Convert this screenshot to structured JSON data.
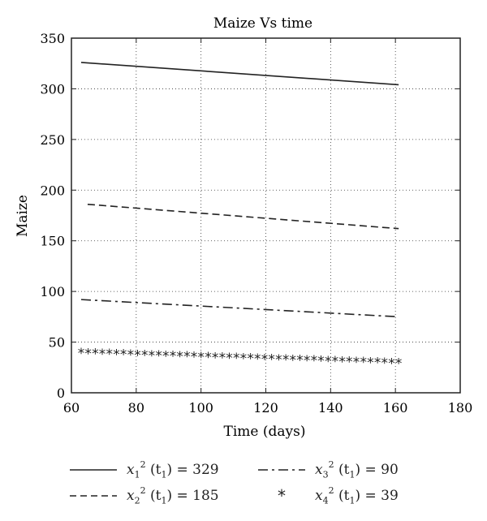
{
  "chart_data": {
    "type": "line",
    "title": "Maize Vs time",
    "xlabel": "Time (days)",
    "ylabel": "Maize",
    "xlim": [
      60,
      180
    ],
    "ylim": [
      0,
      350
    ],
    "xticks": [
      60,
      80,
      100,
      120,
      140,
      160,
      180
    ],
    "yticks": [
      0,
      50,
      100,
      150,
      200,
      250,
      300,
      350
    ],
    "grid": "dotted",
    "legend_position": "bottom",
    "series": [
      {
        "name": "x12 (t1) = 329",
        "symbol_base": "x",
        "symbol_sub": "1",
        "symbol_sup": "2",
        "time_sub": "1",
        "value_text": "= 329",
        "style": "solid",
        "x": [
          63,
          161
        ],
        "y": [
          326,
          304
        ]
      },
      {
        "name": "x22 (t1) = 185",
        "symbol_base": "x",
        "symbol_sub": "2",
        "symbol_sup": "2",
        "time_sub": "1",
        "value_text": "= 185",
        "style": "dashed",
        "x": [
          65,
          161
        ],
        "y": [
          186,
          162
        ]
      },
      {
        "name": "x32 (t1) = 90",
        "symbol_base": "x",
        "symbol_sub": "3",
        "symbol_sup": "2",
        "time_sub": "1",
        "value_text": "= 90",
        "style": "dashdot",
        "x": [
          63,
          161
        ],
        "y": [
          92,
          75
        ]
      },
      {
        "name": "x42 (t1) = 39",
        "symbol_base": "x",
        "symbol_sub": "4",
        "symbol_sup": "2",
        "time_sub": "1",
        "value_text": "= 39",
        "style": "asterisk",
        "x": [
          63,
          161
        ],
        "y": [
          40,
          30
        ],
        "marker_count": 46,
        "marker_symbol": "*"
      }
    ]
  }
}
